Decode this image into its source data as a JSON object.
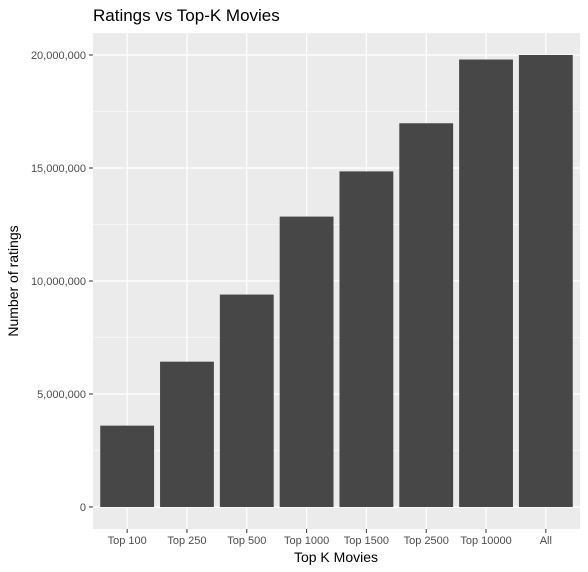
{
  "chart_data": {
    "type": "bar",
    "title": "Ratings vs Top-K Movies",
    "xlabel": "Top K Movies",
    "ylabel": "Number of ratings",
    "categories": [
      "Top 100",
      "Top 250",
      "Top 500",
      "Top 1000",
      "Top 1500",
      "Top 2500",
      "Top 10000",
      "All"
    ],
    "values": [
      3600000,
      6430000,
      9400000,
      12850000,
      14850000,
      16980000,
      19800000,
      20000000
    ],
    "ylim": [
      0,
      20000000
    ],
    "yticks": [
      0,
      5000000,
      10000000,
      15000000,
      20000000
    ],
    "ytick_labels": [
      "0",
      "5,000,000",
      "10,000,000",
      "15,000,000",
      "20,000,000"
    ],
    "grid": true,
    "legend": "none",
    "colors": {
      "bar": "#474747",
      "panel_background": "#ebebeb",
      "grid": "#ffffff",
      "tick_label": "#4d4d4d",
      "tick_mark": "#333333"
    }
  }
}
